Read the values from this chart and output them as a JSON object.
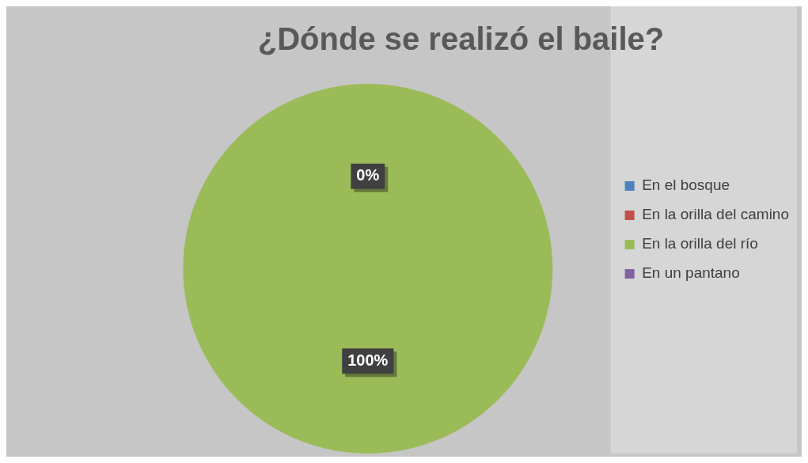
{
  "chart_data": {
    "type": "pie",
    "title": "¿Dónde se realizó el baile?",
    "categories": [
      "En el bosque",
      "En la orilla del camino",
      "En la orilla del río",
      "En un pantano"
    ],
    "values": [
      0,
      0,
      100,
      0
    ],
    "colors": [
      "#4f81bd",
      "#c0504d",
      "#9bbb59",
      "#8064a2"
    ],
    "value_labels": [
      "0%",
      null,
      "100%",
      null
    ],
    "legend": "right"
  }
}
